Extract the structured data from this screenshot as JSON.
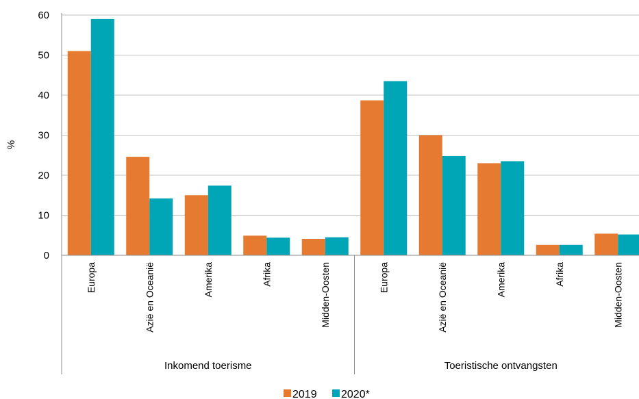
{
  "chart_data": {
    "type": "bar",
    "ylabel": "%",
    "ylim": [
      0,
      60
    ],
    "yticks": [
      0,
      10,
      20,
      30,
      40,
      50,
      60
    ],
    "grid": true,
    "legend_position": "bottom",
    "colors": {
      "2019": "#e57a30",
      "2020*": "#00a6b5"
    },
    "groups": [
      {
        "label": "Inkomend toerisme",
        "categories": [
          "Europa",
          "Azië en Oceanië",
          "Amerika",
          "Afrika",
          "Midden-Oosten"
        ],
        "series": [
          {
            "name": "2019",
            "values": [
              51.0,
              24.6,
              15.0,
              4.9,
              4.1
            ]
          },
          {
            "name": "2020*",
            "values": [
              59.0,
              14.2,
              17.4,
              4.4,
              4.5
            ]
          }
        ]
      },
      {
        "label": "Toeristische ontvangsten",
        "categories": [
          "Europa",
          "Azië en Oceanië",
          "Amerika",
          "Afrika",
          "Midden-Oosten"
        ],
        "series": [
          {
            "name": "2019",
            "values": [
              38.7,
              30.0,
              23.0,
              2.6,
              5.4
            ]
          },
          {
            "name": "2020*",
            "values": [
              43.5,
              24.8,
              23.5,
              2.6,
              5.2
            ]
          }
        ]
      }
    ]
  }
}
